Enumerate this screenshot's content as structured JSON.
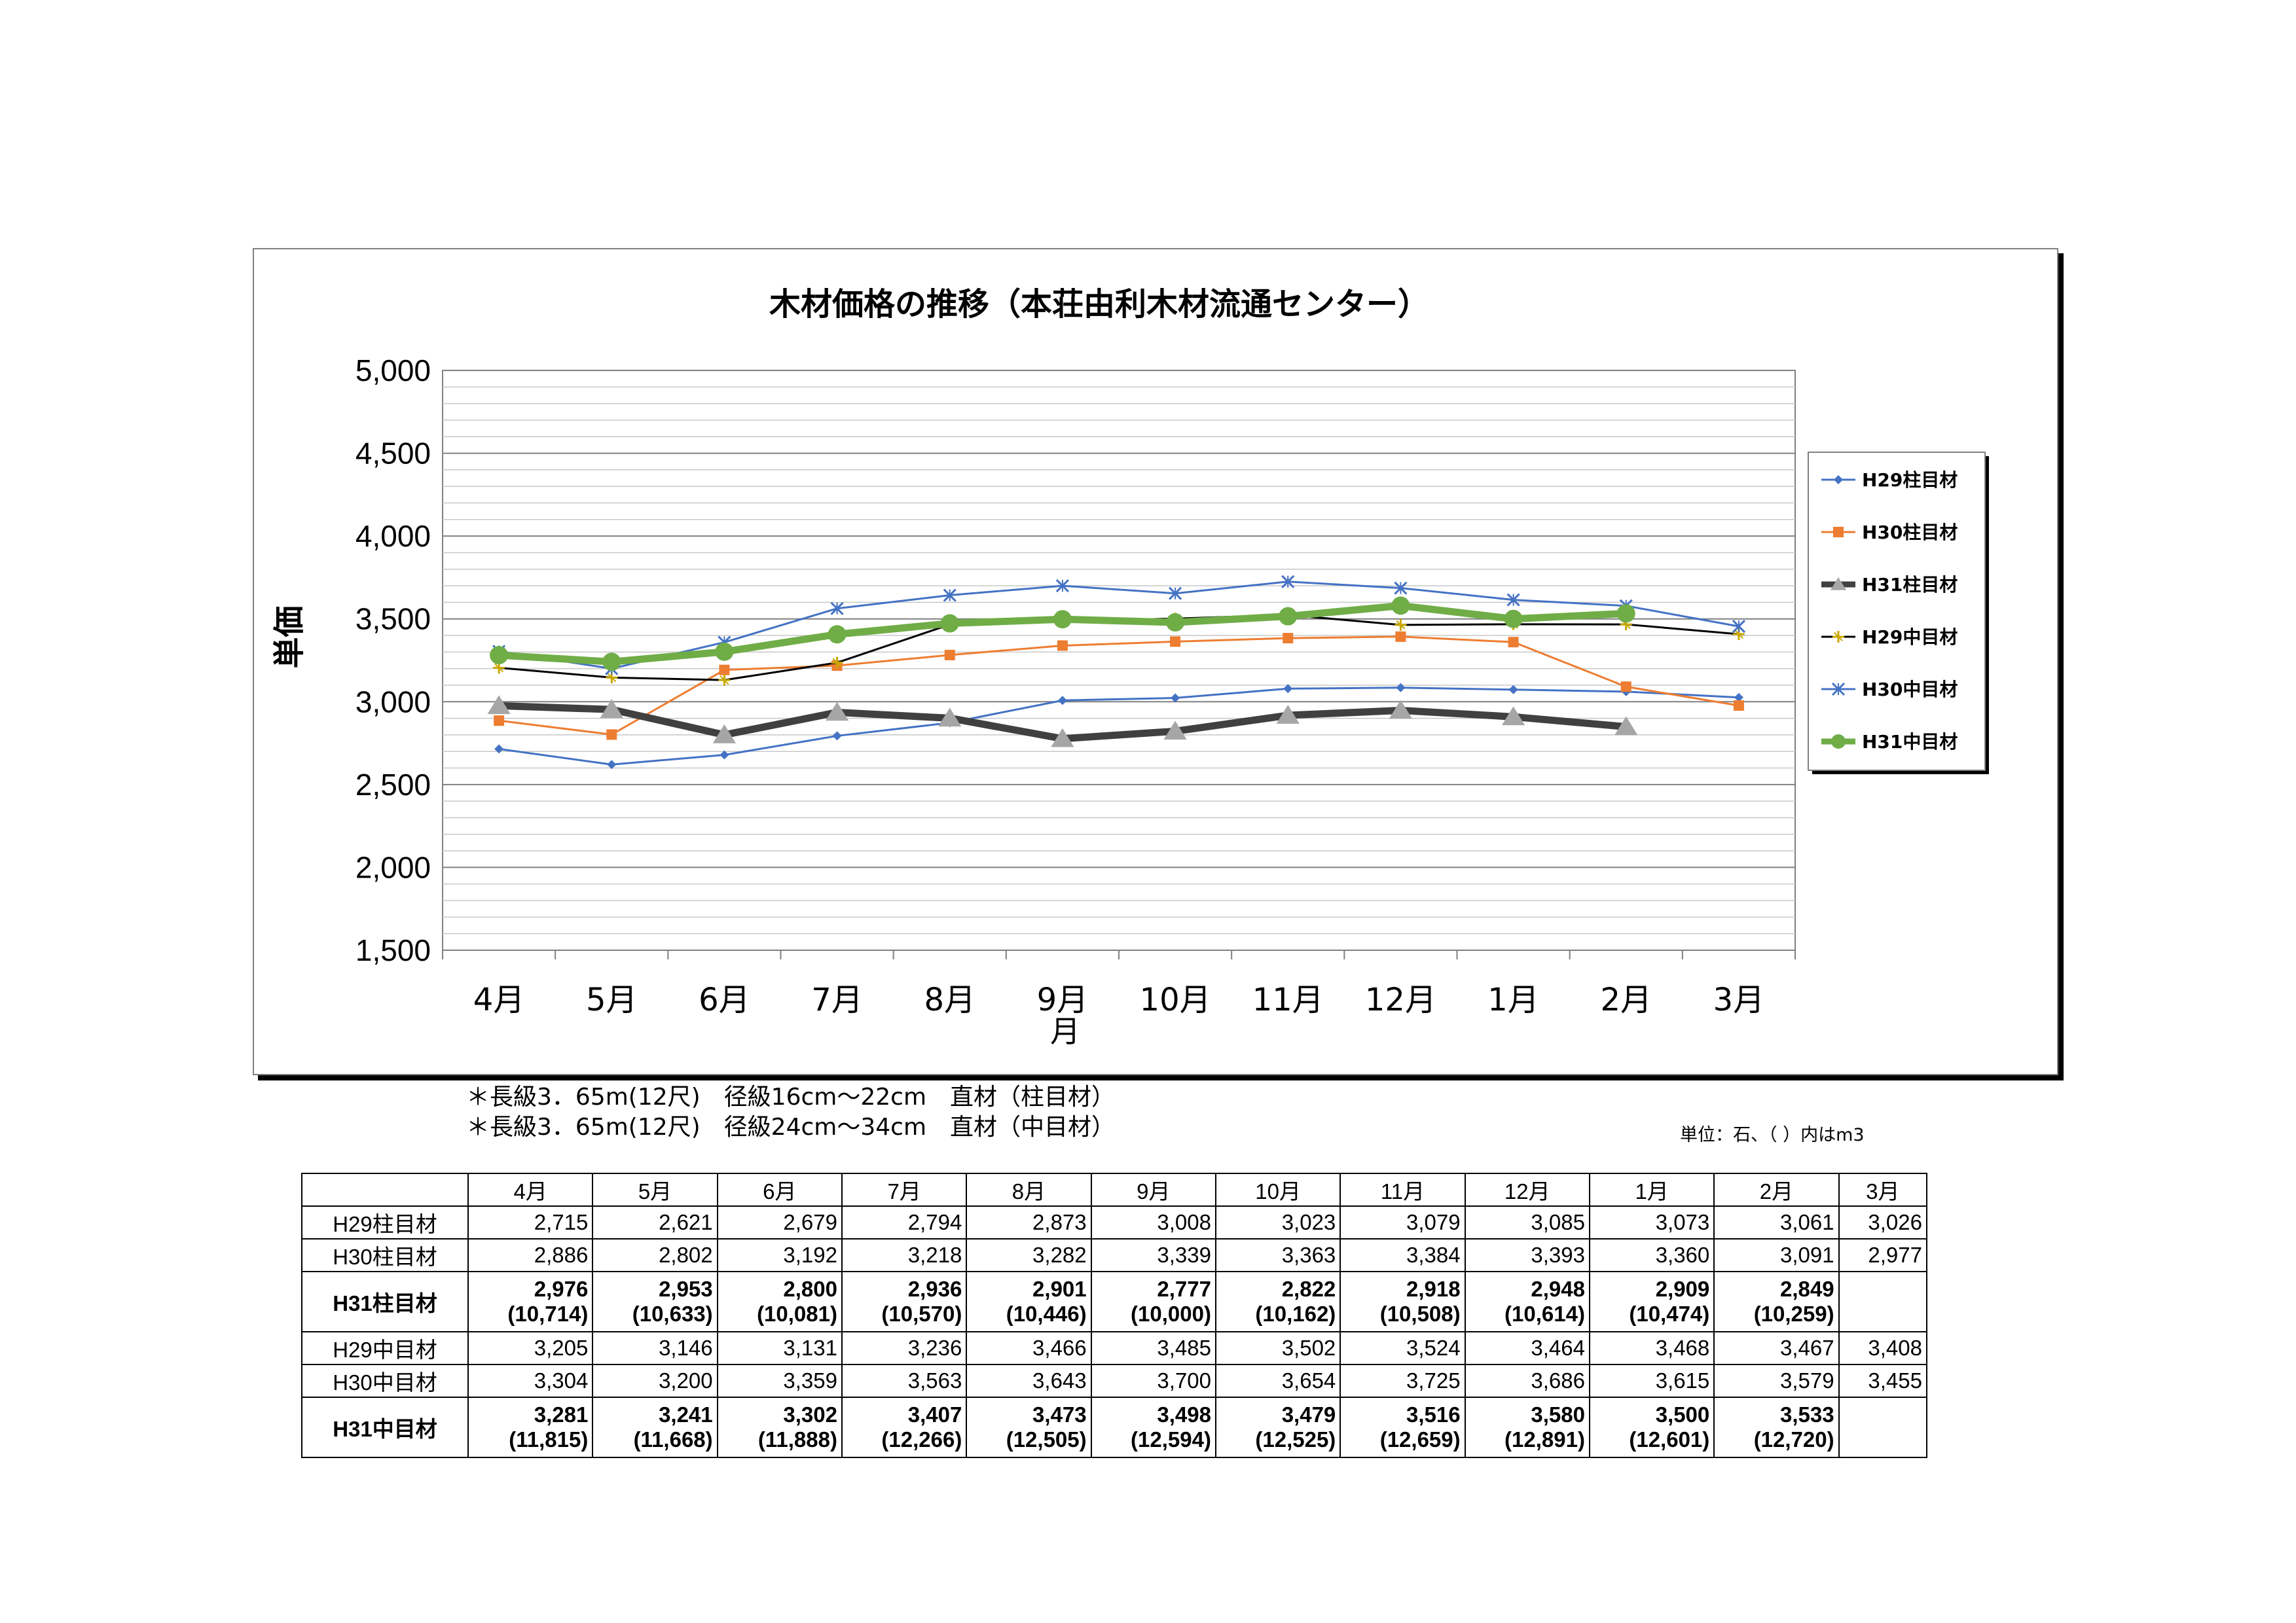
{
  "chart_data": {
    "type": "line",
    "title": "木材価格の推移（本荘由利木材流通センター）",
    "xlabel": "月",
    "ylabel": "単価",
    "categories": [
      "4月",
      "5月",
      "6月",
      "7月",
      "8月",
      "9月",
      "10月",
      "11月",
      "12月",
      "1月",
      "2月",
      "3月"
    ],
    "ylim": [
      1500,
      5000
    ],
    "yticks": [
      "1,500",
      "2,000",
      "2,500",
      "3,000",
      "3,500",
      "4,000",
      "4,500",
      "5,000"
    ],
    "ytick_values": [
      1500,
      2000,
      2500,
      3000,
      3500,
      4000,
      4500,
      5000
    ],
    "grid": true,
    "legend_position": "right",
    "series": [
      {
        "name": "H29柱目材",
        "color": "#4472C4",
        "marker": "diamond",
        "values": [
          2715,
          2621,
          2679,
          2794,
          2873,
          3008,
          3023,
          3079,
          3085,
          3073,
          3061,
          3026
        ]
      },
      {
        "name": "H30柱目材",
        "color": "#ED7D31",
        "marker": "square",
        "values": [
          2886,
          2802,
          3192,
          3218,
          3282,
          3339,
          3363,
          3384,
          3393,
          3360,
          3091,
          2977
        ]
      },
      {
        "name": "H31柱目材",
        "color": "#404040",
        "marker": "triangle",
        "values": [
          2976,
          2953,
          2800,
          2936,
          2901,
          2777,
          2822,
          2918,
          2948,
          2909,
          2849,
          null
        ]
      },
      {
        "name": "H29中目材",
        "color": "#000000",
        "marker": "star",
        "values": [
          3205,
          3146,
          3131,
          3236,
          3466,
          3485,
          3502,
          3524,
          3464,
          3468,
          3467,
          3408
        ]
      },
      {
        "name": "H30中目材",
        "color": "#4472C4",
        "marker": "x",
        "values": [
          3304,
          3200,
          3359,
          3563,
          3643,
          3700,
          3654,
          3725,
          3686,
          3615,
          3579,
          3455
        ]
      },
      {
        "name": "H31中目材",
        "color": "#70AD47",
        "marker": "circle",
        "values": [
          3281,
          3241,
          3302,
          3407,
          3473,
          3498,
          3479,
          3516,
          3580,
          3500,
          3533,
          null
        ]
      }
    ]
  },
  "notes": {
    "line1": "＊長級3．65m(12尺)　径級16cm～22cm　直材（柱目材）",
    "line2": "＊長級3．65m(12尺)　径級24cm～34cm　直材（中目材）",
    "unit": "単位：石、（ ）内はm3"
  },
  "table": {
    "headers": [
      "",
      "4月",
      "5月",
      "6月",
      "7月",
      "8月",
      "9月",
      "10月",
      "11月",
      "12月",
      "1月",
      "2月",
      "3月"
    ],
    "rows": [
      {
        "label": "H29柱目材",
        "bold": false,
        "values": [
          "2,715",
          "2,621",
          "2,679",
          "2,794",
          "2,873",
          "3,008",
          "3,023",
          "3,079",
          "3,085",
          "3,073",
          "3,061",
          "3,026"
        ],
        "sub": null
      },
      {
        "label": "H30柱目材",
        "bold": false,
        "values": [
          "2,886",
          "2,802",
          "3,192",
          "3,218",
          "3,282",
          "3,339",
          "3,363",
          "3,384",
          "3,393",
          "3,360",
          "3,091",
          "2,977"
        ],
        "sub": null
      },
      {
        "label": "H31柱目材",
        "bold": true,
        "values": [
          "2,976",
          "2,953",
          "2,800",
          "2,936",
          "2,901",
          "2,777",
          "2,822",
          "2,918",
          "2,948",
          "2,909",
          "2,849",
          ""
        ],
        "sub": [
          "(10,714)",
          "(10,633)",
          "(10,081)",
          "(10,570)",
          "(10,446)",
          "(10,000)",
          "(10,162)",
          "(10,508)",
          "(10,614)",
          "(10,474)",
          "(10,259)",
          ""
        ]
      },
      {
        "label": "H29中目材",
        "bold": false,
        "values": [
          "3,205",
          "3,146",
          "3,131",
          "3,236",
          "3,466",
          "3,485",
          "3,502",
          "3,524",
          "3,464",
          "3,468",
          "3,467",
          "3,408"
        ],
        "sub": null
      },
      {
        "label": "H30中目材",
        "bold": false,
        "values": [
          "3,304",
          "3,200",
          "3,359",
          "3,563",
          "3,643",
          "3,700",
          "3,654",
          "3,725",
          "3,686",
          "3,615",
          "3,579",
          "3,455"
        ],
        "sub": null
      },
      {
        "label": "H31中目材",
        "bold": true,
        "values": [
          "3,281",
          "3,241",
          "3,302",
          "3,407",
          "3,473",
          "3,498",
          "3,479",
          "3,516",
          "3,580",
          "3,500",
          "3,533",
          ""
        ],
        "sub": [
          "(11,815)",
          "(11,668)",
          "(11,888)",
          "(12,266)",
          "(12,505)",
          "(12,594)",
          "(12,525)",
          "(12,659)",
          "(12,891)",
          "(12,601)",
          "(12,720)",
          ""
        ]
      }
    ]
  }
}
